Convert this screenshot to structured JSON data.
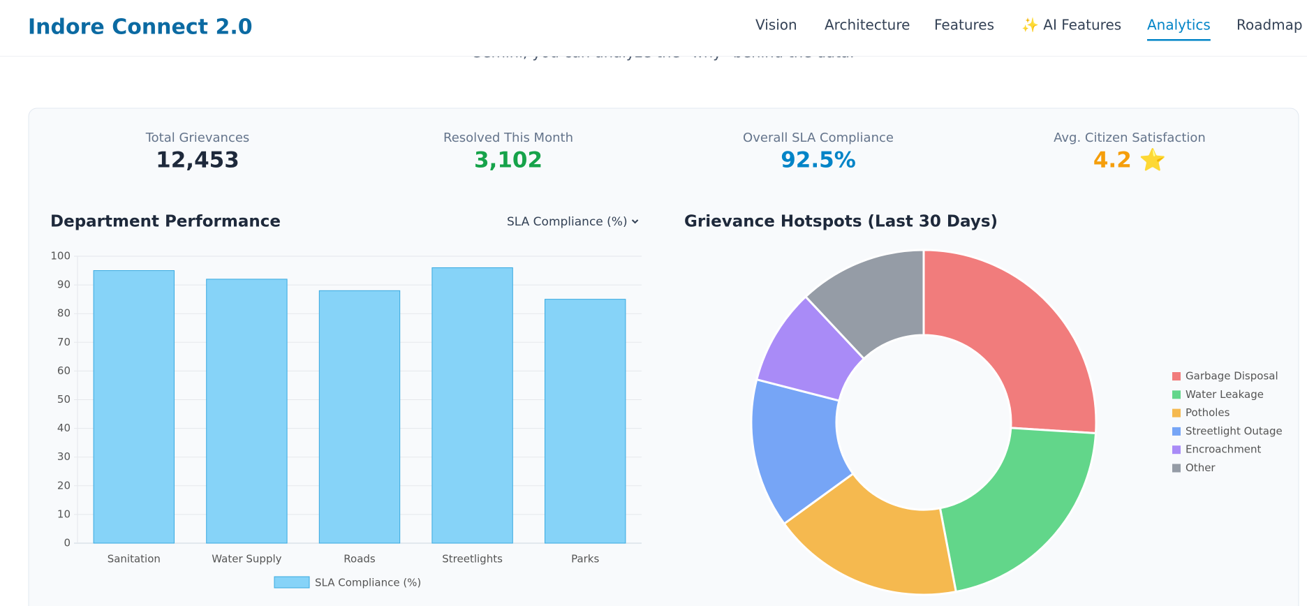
{
  "header": {
    "title": "Indore Connect 2.0",
    "nav": [
      "Vision",
      "Architecture",
      "Features",
      "✨ AI Features",
      "Analytics",
      "Roadmap"
    ],
    "active": "Analytics"
  },
  "section_subtitle": "Gemini, you can analyze the \"why\" behind the data.",
  "kpis": [
    {
      "label": "Total Grievances",
      "value": "12,453"
    },
    {
      "label": "Resolved This Month",
      "value": "3,102"
    },
    {
      "label": "Overall SLA Compliance",
      "value": "92.5%"
    },
    {
      "label": "Avg. Citizen Satisfaction",
      "value": "4.2 ⭐"
    }
  ],
  "chart_data": [
    {
      "type": "bar",
      "title": "Department Performance",
      "selector": "SLA Compliance (%)",
      "categories": [
        "Sanitation",
        "Water Supply",
        "Roads",
        "Streetlights",
        "Parks"
      ],
      "series": [
        {
          "name": "SLA Compliance (%)",
          "color": "#86d3f8",
          "values": [
            95,
            92,
            88,
            96,
            85
          ]
        }
      ],
      "ylim": [
        0,
        100
      ],
      "yticks": [
        0,
        10,
        20,
        30,
        40,
        50,
        60,
        70,
        80,
        90,
        100
      ],
      "grid": true,
      "legend": "bottom"
    },
    {
      "type": "pie",
      "title": "Grievance Hotspots (Last 30 Days)",
      "donut": true,
      "categories": [
        "Garbage Disposal",
        "Water Leakage",
        "Potholes",
        "Streetlight Outage",
        "Encroachment",
        "Other"
      ],
      "values": [
        26,
        21,
        18,
        14,
        9,
        12
      ],
      "colors": [
        "#f17c7c",
        "#62d68a",
        "#f5b94f",
        "#76a5f6",
        "#a98bf7",
        "#959ca6"
      ],
      "legend": "right"
    }
  ]
}
